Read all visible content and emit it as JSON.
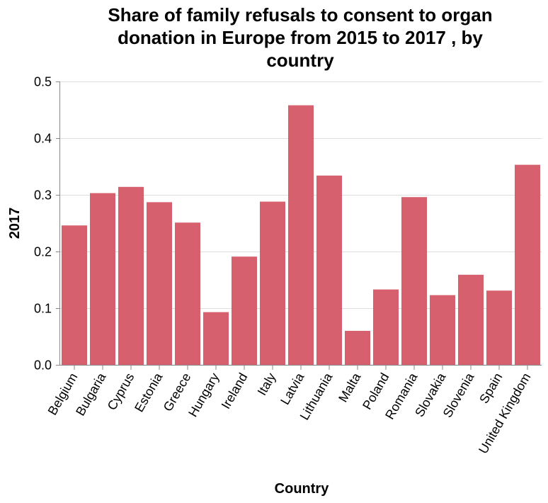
{
  "chart_data": {
    "type": "bar",
    "title_lines": [
      "Share of family refusals to consent to organ",
      "donation in Europe from 2015 to 2017 , by",
      "country"
    ],
    "xlabel": "Country",
    "ylabel": "2017",
    "ylim": [
      0,
      0.5
    ],
    "yticks": [
      "0.0",
      "0.1",
      "0.2",
      "0.3",
      "0.4",
      "0.5"
    ],
    "grid": true,
    "bar_color": "#d6606d",
    "categories": [
      "Belgium",
      "Bulgaria",
      "Cyprus",
      "Estonia",
      "Greece",
      "Hungary",
      "Ireland",
      "Italy",
      "Latvia",
      "Lithuania",
      "Malta",
      "Poland",
      "Romania",
      "Slovakia",
      "Slovenia",
      "Spain",
      "United Kingdom"
    ],
    "values": [
      0.246,
      0.303,
      0.314,
      0.287,
      0.251,
      0.093,
      0.191,
      0.288,
      0.458,
      0.334,
      0.06,
      0.133,
      0.296,
      0.123,
      0.159,
      0.131,
      0.353
    ]
  }
}
